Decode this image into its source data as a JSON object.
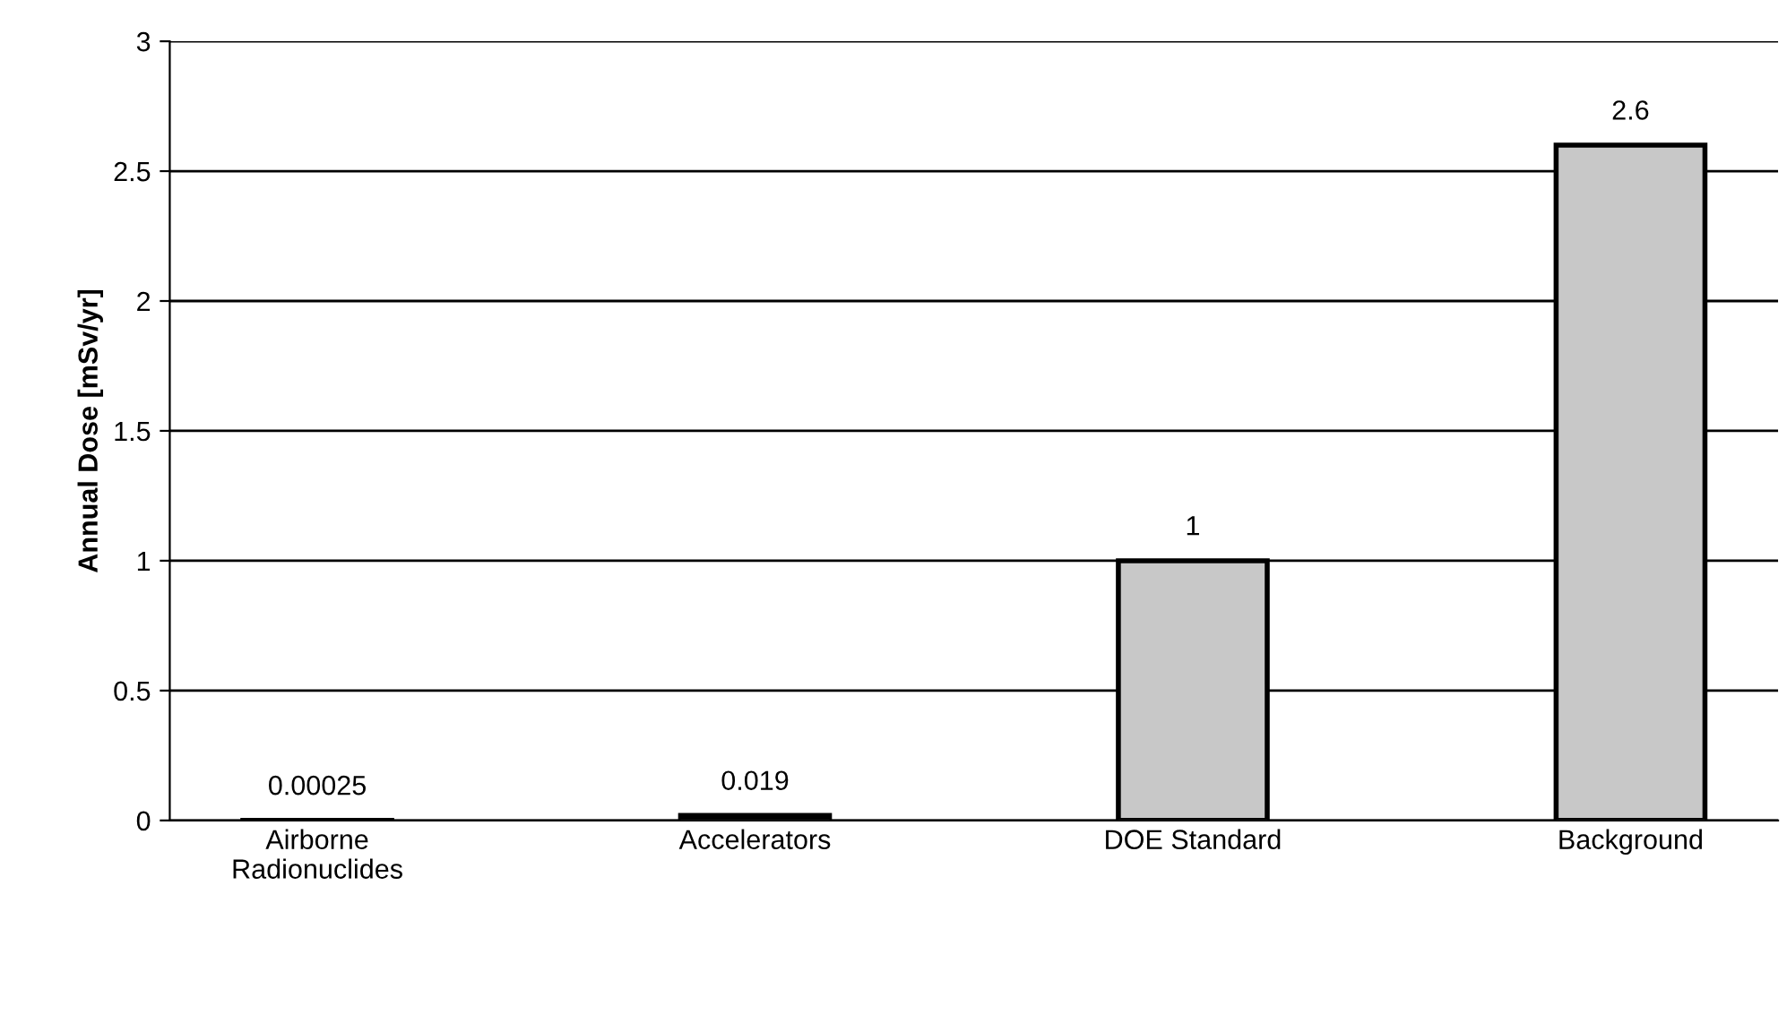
{
  "chart_data": {
    "type": "bar",
    "ylabel": "Annual Dose [mSv/yr]",
    "categories": [
      "Airborne\nRadionuclides",
      "Accelerators",
      "DOE Standard",
      "Background"
    ],
    "values": [
      0.00025,
      0.019,
      1,
      2.6
    ],
    "color": "#c8c8c8",
    "ylim": [
      0,
      3
    ],
    "yticks": [
      0,
      0.5,
      1,
      1.5,
      2,
      2.5,
      3
    ],
    "grid": "y",
    "data_labels": true,
    "legend": false
  }
}
